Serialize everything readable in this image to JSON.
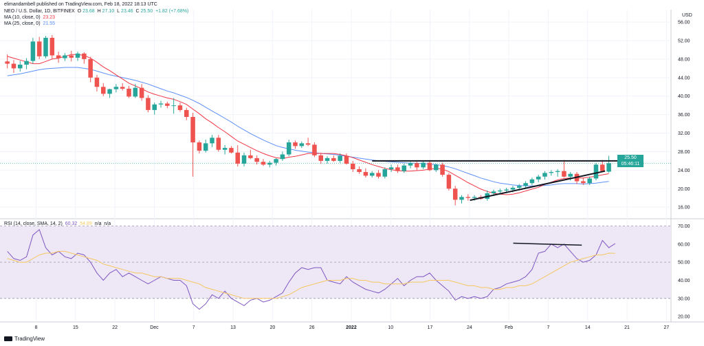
{
  "header": {
    "publisher": "elimandambell published on TradingView.com, Feb 18, 2022 18:13 UTC",
    "symbol": "NEO / U.S. Dollar, 1D, BITFINEX",
    "o_label": "O",
    "o_value": "23.68",
    "h_label": "H",
    "h_value": "27.10",
    "l_label": "L",
    "l_value": "23.46",
    "c_label": "C",
    "c_value": "25.50",
    "change": "+1.82 (+7.68%)",
    "ma10_label": "MA (10, close, 0)",
    "ma10_value": "23.23",
    "ma25_label": "MA (25, close, 0)",
    "ma25_value": "21.55",
    "rsi_label": "RSI (14, close, SMA, 14, 2)",
    "rsi_value": "60.32",
    "rsi_sma_value": "54.89",
    "na1": "n/a",
    "na2": "n/a",
    "currency": "USD"
  },
  "price_badge": {
    "price": "25.50",
    "countdown": "05:46:11"
  },
  "brand": {
    "name": "TradingView"
  },
  "colors": {
    "up": "#26a69a",
    "down": "#ef5350",
    "ma10": "#f23645",
    "ma25": "#5b8ff9",
    "rsi": "#7e57c2",
    "rsi_sma": "#f6c85f",
    "rsi_band": "#ede7f6",
    "trendline": "#131722",
    "grid": "#f0f3fa"
  },
  "chart_data": [
    {
      "type": "candlestick",
      "title": "NEO / U.S. Dollar, 1D, BITFINEX",
      "y_ticks": [
        "56.00",
        "52.00",
        "48.00",
        "44.00",
        "40.00",
        "36.00",
        "32.00",
        "28.00",
        "24.00",
        "20.00",
        "16.00"
      ],
      "ylim": [
        13.5,
        57.5
      ],
      "x_ticks": [
        "8",
        "15",
        "22",
        "Dec",
        "7",
        "13",
        "20",
        "26",
        "2022",
        "10",
        "17",
        "24",
        "Feb",
        "7",
        "14",
        "21",
        "27"
      ],
      "candles": [
        {
          "o": 47.5,
          "h": 49.0,
          "l": 46.0,
          "c": 47.0
        },
        {
          "o": 47.0,
          "h": 47.8,
          "l": 45.0,
          "c": 46.0
        },
        {
          "o": 46.0,
          "h": 47.6,
          "l": 45.3,
          "c": 46.8
        },
        {
          "o": 46.8,
          "h": 48.2,
          "l": 45.8,
          "c": 47.6
        },
        {
          "o": 47.6,
          "h": 52.6,
          "l": 47.0,
          "c": 51.8
        },
        {
          "o": 51.8,
          "h": 52.8,
          "l": 48.0,
          "c": 48.6
        },
        {
          "o": 48.6,
          "h": 53.0,
          "l": 48.2,
          "c": 52.6
        },
        {
          "o": 52.6,
          "h": 53.2,
          "l": 48.0,
          "c": 48.8
        },
        {
          "o": 48.8,
          "h": 49.6,
          "l": 47.2,
          "c": 48.2
        },
        {
          "o": 48.2,
          "h": 49.3,
          "l": 47.6,
          "c": 48.8
        },
        {
          "o": 48.8,
          "h": 49.8,
          "l": 47.5,
          "c": 48.3
        },
        {
          "o": 48.3,
          "h": 49.6,
          "l": 47.6,
          "c": 49.2
        },
        {
          "o": 49.2,
          "h": 49.5,
          "l": 47.0,
          "c": 48.0
        },
        {
          "o": 48.0,
          "h": 48.5,
          "l": 43.0,
          "c": 44.0
        },
        {
          "o": 44.0,
          "h": 44.6,
          "l": 41.0,
          "c": 42.0
        },
        {
          "o": 42.0,
          "h": 42.8,
          "l": 40.0,
          "c": 40.5
        },
        {
          "o": 40.5,
          "h": 41.6,
          "l": 39.6,
          "c": 41.5
        },
        {
          "o": 41.5,
          "h": 42.6,
          "l": 40.8,
          "c": 42.0
        },
        {
          "o": 42.0,
          "h": 42.8,
          "l": 41.2,
          "c": 41.6
        },
        {
          "o": 41.6,
          "h": 42.2,
          "l": 39.6,
          "c": 39.9
        },
        {
          "o": 39.9,
          "h": 42.6,
          "l": 39.6,
          "c": 41.8
        },
        {
          "o": 41.8,
          "h": 42.6,
          "l": 39.0,
          "c": 39.6
        },
        {
          "o": 39.6,
          "h": 40.2,
          "l": 36.5,
          "c": 37.0
        },
        {
          "o": 37.0,
          "h": 38.6,
          "l": 36.0,
          "c": 38.2
        },
        {
          "o": 38.2,
          "h": 39.0,
          "l": 37.5,
          "c": 38.4
        },
        {
          "o": 38.4,
          "h": 38.8,
          "l": 37.4,
          "c": 37.9
        },
        {
          "o": 37.9,
          "h": 39.6,
          "l": 36.2,
          "c": 38.0
        },
        {
          "o": 38.0,
          "h": 38.6,
          "l": 36.6,
          "c": 37.0
        },
        {
          "o": 37.0,
          "h": 37.5,
          "l": 34.8,
          "c": 35.5
        },
        {
          "o": 35.5,
          "h": 36.4,
          "l": 22.6,
          "c": 30.0
        },
        {
          "o": 30.0,
          "h": 30.4,
          "l": 27.6,
          "c": 28.2
        },
        {
          "o": 28.2,
          "h": 30.6,
          "l": 27.8,
          "c": 29.8
        },
        {
          "o": 29.8,
          "h": 31.6,
          "l": 29.0,
          "c": 31.0
        },
        {
          "o": 31.0,
          "h": 31.6,
          "l": 28.0,
          "c": 28.4
        },
        {
          "o": 28.4,
          "h": 29.4,
          "l": 27.4,
          "c": 28.8
        },
        {
          "o": 28.8,
          "h": 29.2,
          "l": 27.6,
          "c": 27.8
        },
        {
          "o": 27.8,
          "h": 29.4,
          "l": 24.8,
          "c": 25.4
        },
        {
          "o": 25.4,
          "h": 27.8,
          "l": 24.8,
          "c": 27.2
        },
        {
          "o": 27.2,
          "h": 28.4,
          "l": 26.4,
          "c": 26.6
        },
        {
          "o": 26.6,
          "h": 27.2,
          "l": 25.2,
          "c": 25.8
        },
        {
          "o": 25.8,
          "h": 26.4,
          "l": 24.9,
          "c": 25.2
        },
        {
          "o": 25.2,
          "h": 26.0,
          "l": 24.6,
          "c": 25.6
        },
        {
          "o": 25.6,
          "h": 26.6,
          "l": 25.0,
          "c": 26.4
        },
        {
          "o": 26.4,
          "h": 28.0,
          "l": 26.0,
          "c": 27.4
        },
        {
          "o": 27.4,
          "h": 30.6,
          "l": 27.0,
          "c": 30.0
        },
        {
          "o": 30.0,
          "h": 30.4,
          "l": 28.6,
          "c": 29.2
        },
        {
          "o": 29.2,
          "h": 30.2,
          "l": 28.8,
          "c": 29.8
        },
        {
          "o": 29.8,
          "h": 31.0,
          "l": 29.2,
          "c": 29.5
        },
        {
          "o": 29.5,
          "h": 30.0,
          "l": 26.8,
          "c": 27.2
        },
        {
          "o": 27.2,
          "h": 27.8,
          "l": 25.4,
          "c": 26.0
        },
        {
          "o": 26.0,
          "h": 27.0,
          "l": 25.4,
          "c": 26.6
        },
        {
          "o": 26.6,
          "h": 27.2,
          "l": 25.8,
          "c": 26.0
        },
        {
          "o": 26.0,
          "h": 27.6,
          "l": 25.6,
          "c": 27.1
        },
        {
          "o": 27.1,
          "h": 27.6,
          "l": 25.2,
          "c": 25.4
        },
        {
          "o": 25.4,
          "h": 26.0,
          "l": 23.6,
          "c": 24.2
        },
        {
          "o": 24.2,
          "h": 24.8,
          "l": 23.2,
          "c": 23.6
        },
        {
          "o": 23.6,
          "h": 24.4,
          "l": 22.4,
          "c": 22.8
        },
        {
          "o": 22.8,
          "h": 23.8,
          "l": 22.4,
          "c": 23.4
        },
        {
          "o": 23.4,
          "h": 24.0,
          "l": 22.2,
          "c": 22.6
        },
        {
          "o": 22.6,
          "h": 24.6,
          "l": 22.2,
          "c": 24.2
        },
        {
          "o": 24.2,
          "h": 25.2,
          "l": 23.6,
          "c": 24.6
        },
        {
          "o": 24.6,
          "h": 25.2,
          "l": 23.4,
          "c": 23.8
        },
        {
          "o": 23.8,
          "h": 25.4,
          "l": 23.4,
          "c": 25.0
        },
        {
          "o": 25.0,
          "h": 25.8,
          "l": 24.4,
          "c": 25.5
        },
        {
          "o": 25.5,
          "h": 25.8,
          "l": 24.0,
          "c": 24.6
        },
        {
          "o": 24.6,
          "h": 25.9,
          "l": 24.2,
          "c": 25.6
        },
        {
          "o": 25.6,
          "h": 26.0,
          "l": 23.8,
          "c": 24.0
        },
        {
          "o": 24.0,
          "h": 25.4,
          "l": 23.6,
          "c": 25.2
        },
        {
          "o": 25.2,
          "h": 25.6,
          "l": 22.6,
          "c": 23.0
        },
        {
          "o": 23.0,
          "h": 23.4,
          "l": 19.6,
          "c": 20.0
        },
        {
          "o": 20.0,
          "h": 20.6,
          "l": 16.4,
          "c": 17.6
        },
        {
          "o": 17.6,
          "h": 18.6,
          "l": 16.8,
          "c": 18.2
        },
        {
          "o": 18.2,
          "h": 18.8,
          "l": 17.4,
          "c": 18.0
        },
        {
          "o": 18.0,
          "h": 18.6,
          "l": 17.4,
          "c": 18.2
        },
        {
          "o": 18.2,
          "h": 18.6,
          "l": 17.6,
          "c": 17.8
        },
        {
          "o": 17.8,
          "h": 19.6,
          "l": 17.4,
          "c": 19.0
        },
        {
          "o": 19.0,
          "h": 19.8,
          "l": 18.4,
          "c": 19.4
        },
        {
          "o": 19.4,
          "h": 20.0,
          "l": 18.8,
          "c": 19.6
        },
        {
          "o": 19.6,
          "h": 20.2,
          "l": 19.0,
          "c": 19.8
        },
        {
          "o": 19.8,
          "h": 20.6,
          "l": 19.2,
          "c": 20.2
        },
        {
          "o": 20.2,
          "h": 21.0,
          "l": 19.6,
          "c": 20.6
        },
        {
          "o": 20.6,
          "h": 21.6,
          "l": 20.0,
          "c": 21.2
        },
        {
          "o": 21.2,
          "h": 22.4,
          "l": 20.8,
          "c": 22.0
        },
        {
          "o": 22.0,
          "h": 23.0,
          "l": 21.4,
          "c": 22.6
        },
        {
          "o": 22.6,
          "h": 23.8,
          "l": 22.0,
          "c": 23.4
        },
        {
          "o": 23.4,
          "h": 24.0,
          "l": 22.8,
          "c": 23.6
        },
        {
          "o": 23.6,
          "h": 24.2,
          "l": 22.6,
          "c": 23.8
        },
        {
          "o": 23.8,
          "h": 26.2,
          "l": 22.4,
          "c": 22.6
        },
        {
          "o": 22.6,
          "h": 23.6,
          "l": 21.8,
          "c": 23.2
        },
        {
          "o": 23.2,
          "h": 23.6,
          "l": 21.0,
          "c": 21.6
        },
        {
          "o": 21.6,
          "h": 22.4,
          "l": 20.8,
          "c": 21.2
        },
        {
          "o": 21.2,
          "h": 22.6,
          "l": 20.8,
          "c": 22.2
        },
        {
          "o": 22.2,
          "h": 25.6,
          "l": 21.8,
          "c": 25.2
        },
        {
          "o": 25.2,
          "h": 26.2,
          "l": 23.6,
          "c": 23.8
        },
        {
          "o": 23.68,
          "h": 27.1,
          "l": 23.46,
          "c": 25.5
        }
      ],
      "ma10": [
        48.6,
        48.2,
        47.8,
        47.4,
        47.0,
        47.0,
        47.5,
        48.0,
        48.2,
        48.6,
        49.0,
        49.0,
        48.8,
        48.2,
        47.3,
        46.3,
        45.5,
        44.6,
        43.7,
        42.8,
        42.2,
        41.6,
        40.9,
        40.4,
        40.0,
        39.6,
        39.3,
        38.8,
        38.2,
        37.2,
        36.2,
        35.1,
        34.2,
        33.2,
        32.3,
        31.3,
        30.3,
        29.6,
        28.9,
        28.2,
        27.6,
        27.1,
        26.7,
        26.5,
        26.8,
        27.0,
        27.3,
        27.6,
        27.6,
        27.6,
        27.6,
        27.6,
        27.4,
        27.1,
        26.7,
        26.2,
        25.7,
        25.2,
        24.8,
        24.4,
        24.1,
        23.9,
        23.8,
        23.8,
        23.9,
        24.0,
        24.2,
        24.4,
        24.2,
        23.7,
        22.9,
        22.1,
        21.3,
        20.6,
        19.9,
        19.4,
        19.0,
        18.8,
        18.7,
        18.8,
        19.1,
        19.5,
        19.9,
        20.3,
        20.9,
        21.4,
        21.9,
        22.2,
        22.3,
        22.3,
        22.3,
        22.5,
        22.7,
        23.0,
        23.23
      ],
      "ma25": [
        44.4,
        44.6,
        44.8,
        45.1,
        45.4,
        45.7,
        45.9,
        46.0,
        46.1,
        46.2,
        46.2,
        46.2,
        46.0,
        45.8,
        45.4,
        45.0,
        44.6,
        44.3,
        44.0,
        43.7,
        43.4,
        43.0,
        42.6,
        42.1,
        41.6,
        41.1,
        40.7,
        40.2,
        39.7,
        39.1,
        38.4,
        37.6,
        36.8,
        36.0,
        35.2,
        34.4,
        33.5,
        32.7,
        31.9,
        31.2,
        30.5,
        29.9,
        29.3,
        28.9,
        28.6,
        28.3,
        28.1,
        27.9,
        27.8,
        27.6,
        27.5,
        27.4,
        27.2,
        27.0,
        26.8,
        26.6,
        26.4,
        26.2,
        26.0,
        25.9,
        25.8,
        25.7,
        25.6,
        25.5,
        25.5,
        25.4,
        25.3,
        25.2,
        25.0,
        24.7,
        24.3,
        23.8,
        23.3,
        22.8,
        22.3,
        21.9,
        21.5,
        21.2,
        21.0,
        20.8,
        20.7,
        20.6,
        20.6,
        20.6,
        20.7,
        20.8,
        21.0,
        21.1,
        21.1,
        21.1,
        21.0,
        21.1,
        21.2,
        21.4,
        21.55
      ],
      "trendlines": [
        {
          "x": [
            0.553,
            0.94
          ],
          "y": [
            26.0,
            26.0
          ]
        },
        {
          "x": [
            0.7,
            0.903
          ],
          "y": [
            17.5,
            23.8
          ]
        }
      ]
    },
    {
      "type": "line",
      "title": "RSI (14, close, SMA, 14, 2)",
      "y_ticks": [
        "70.00",
        "60.00",
        "50.00",
        "40.00",
        "30.00",
        "20.00"
      ],
      "ylim": [
        17,
        74
      ],
      "band": [
        30,
        70
      ],
      "midline": 50,
      "rsi": [
        56,
        52,
        51,
        53,
        65,
        68,
        58,
        54,
        56,
        53,
        52,
        55,
        54,
        50,
        44,
        40,
        44,
        46,
        42,
        44,
        42,
        40,
        38,
        40,
        42,
        41,
        40,
        40,
        37,
        27,
        24,
        27,
        32,
        30,
        34,
        30,
        28,
        26,
        29,
        30,
        28,
        29,
        31,
        33,
        39,
        44,
        47,
        46,
        47,
        47,
        40,
        39,
        38,
        42,
        39,
        37,
        35,
        34,
        33,
        35,
        38,
        41,
        37,
        40,
        42,
        42,
        44,
        40,
        37,
        34,
        29,
        31,
        30,
        31,
        30,
        31,
        35,
        36,
        38,
        39,
        40,
        42,
        46,
        55,
        56,
        60,
        58,
        60,
        56,
        52,
        50,
        51,
        54,
        62,
        58,
        60.32
      ],
      "rsi_sma": [
        52,
        51,
        50,
        50,
        52,
        54,
        55,
        55,
        56,
        56,
        55,
        54,
        53,
        52,
        51,
        49,
        48,
        47,
        46,
        45,
        44,
        44,
        43,
        42,
        42,
        41,
        41,
        41,
        40,
        39,
        38,
        36,
        35,
        34,
        33,
        32,
        31,
        30,
        30,
        30,
        30,
        30,
        30,
        31,
        32,
        34,
        36,
        37,
        38,
        39,
        40,
        40,
        40,
        41,
        41,
        40,
        40,
        39,
        39,
        38,
        38,
        38,
        38,
        39,
        39,
        39,
        40,
        40,
        40,
        40,
        39,
        38,
        37,
        37,
        36,
        36,
        35,
        35,
        36,
        36,
        37,
        37,
        38,
        40,
        42,
        44,
        46,
        48,
        50,
        51,
        52,
        53,
        54,
        54,
        55,
        54.89
      ],
      "trendlines": [
        {
          "x": [
            0.765,
            0.868
          ],
          "y": [
            60.5,
            59.4
          ]
        }
      ]
    }
  ]
}
